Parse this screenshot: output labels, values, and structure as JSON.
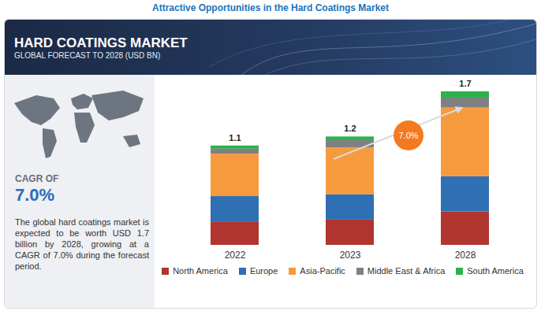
{
  "header": "Attractive Opportunities in the Hard Coatings Market",
  "chart_data": {
    "type": "bar",
    "title": "HARD COATINGS MARKET",
    "subtitle": "GLOBAL FORECAST TO 2028 (USD BN)",
    "categories": [
      "2022",
      "2023",
      "2028"
    ],
    "series": [
      {
        "name": "North America",
        "color": "#b0352f",
        "values": [
          0.26,
          0.28,
          0.37
        ]
      },
      {
        "name": "Europe",
        "color": "#2f6fb3",
        "values": [
          0.28,
          0.28,
          0.39
        ]
      },
      {
        "name": "Asia-Pacific",
        "color": "#f79a3e",
        "values": [
          0.47,
          0.52,
          0.76
        ]
      },
      {
        "name": "Middle East & Africa",
        "color": "#808080",
        "values": [
          0.055,
          0.08,
          0.11
        ]
      },
      {
        "name": "South America",
        "color": "#2bb24c",
        "values": [
          0.035,
          0.04,
          0.07
        ]
      }
    ],
    "totals": [
      1.1,
      1.2,
      1.7
    ],
    "stacked": true,
    "ylim": [
      0,
      1.7
    ],
    "tick_labels": "x",
    "legend": "bottom",
    "annotations": [
      {
        "text": "7.0%",
        "value": 7.0
      }
    ],
    "cagr": {
      "label": "CAGR OF",
      "value": 7.0,
      "value_label": "7.0%"
    },
    "description": "The global hard coatings market is expected to be worth USD 1.7 billion by 2028, growing at a CAGR of 7.0% during the forecast period."
  }
}
